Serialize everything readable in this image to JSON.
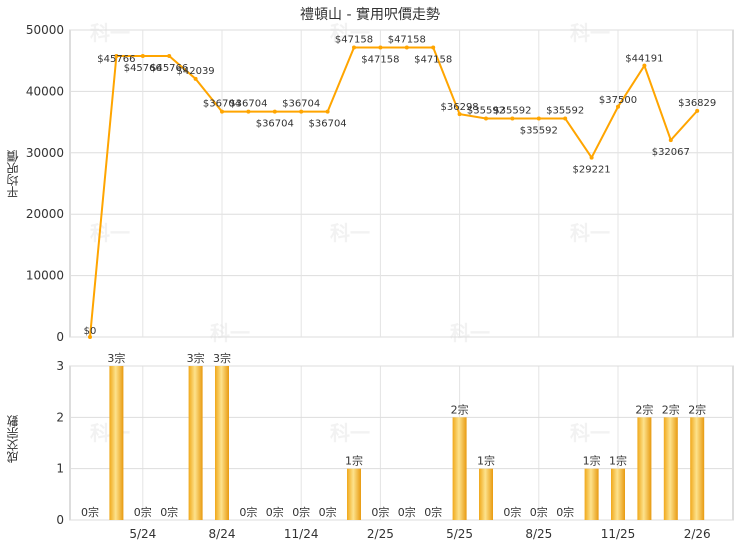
{
  "title": "禮頓山 - 實用呎價走勢",
  "watermark": "科一",
  "chart_data": [
    {
      "type": "line",
      "title": "禮頓山 - 實用呎價走勢",
      "ylabel": "平均呎價",
      "ylim": [
        0,
        50000
      ],
      "yticks": [
        0,
        10000,
        20000,
        30000,
        40000,
        50000
      ],
      "grid": true,
      "color": "#ffa500",
      "series": [
        {
          "values": [
            0,
            45766,
            45766,
            45766,
            42039,
            36704,
            36704,
            36704,
            36704,
            36704,
            47158,
            47158,
            47158,
            47158,
            36298,
            35592,
            35592,
            35592,
            35592,
            29221,
            37500,
            44191,
            32067,
            36829
          ],
          "labels": [
            "$0",
            "$45766",
            "$45766",
            "$45766",
            "$42039",
            "$36704",
            "$36704",
            "$36704",
            "$36704",
            "$36704",
            "$47158",
            "$47158",
            "$47158",
            "$47158",
            "$36298",
            "$35592",
            "$35592",
            "$35592",
            "$35592",
            "$29221",
            "$37500",
            "$44191",
            "$32067",
            "$36829"
          ]
        }
      ]
    },
    {
      "type": "bar",
      "ylabel": "成交宗數",
      "ylim": [
        0,
        3
      ],
      "yticks": [
        0,
        1,
        2,
        3
      ],
      "grid": true,
      "color": "#f5b21c",
      "x_tick_labels": [
        {
          "index": 2,
          "label": "5/24"
        },
        {
          "index": 5,
          "label": "8/24"
        },
        {
          "index": 8,
          "label": "11/24"
        },
        {
          "index": 11,
          "label": "2/25"
        },
        {
          "index": 14,
          "label": "5/25"
        },
        {
          "index": 17,
          "label": "8/25"
        },
        {
          "index": 20,
          "label": "11/25"
        },
        {
          "index": 23,
          "label": "2/26"
        }
      ],
      "values": [
        0,
        3,
        0,
        0,
        3,
        3,
        0,
        0,
        0,
        0,
        1,
        0,
        0,
        0,
        2,
        1,
        0,
        0,
        0,
        1,
        1,
        2,
        2,
        2
      ],
      "labels": [
        "0宗",
        "3宗",
        "0宗",
        "0宗",
        "3宗",
        "3宗",
        "0宗",
        "0宗",
        "0宗",
        "0宗",
        "1宗",
        "0宗",
        "0宗",
        "0宗",
        "2宗",
        "1宗",
        "0宗",
        "0宗",
        "0宗",
        "1宗",
        "1宗",
        "2宗",
        "2宗",
        "2宗"
      ]
    }
  ]
}
